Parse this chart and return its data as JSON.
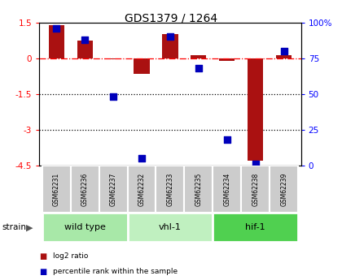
{
  "title": "GDS1379 / 1264",
  "samples": [
    "GSM62231",
    "GSM62236",
    "GSM62237",
    "GSM62232",
    "GSM62233",
    "GSM62235",
    "GSM62234",
    "GSM62238",
    "GSM62239"
  ],
  "log2_ratio": [
    1.4,
    0.75,
    -0.05,
    -0.65,
    1.0,
    0.12,
    -0.1,
    -4.3,
    0.12
  ],
  "percentile_rank": [
    96,
    88,
    48,
    5,
    90,
    68,
    18,
    1,
    80
  ],
  "groups": [
    {
      "label": "wild type",
      "indices": [
        0,
        1,
        2
      ],
      "color": "#a8e8a8"
    },
    {
      "label": "vhl-1",
      "indices": [
        3,
        4,
        5
      ],
      "color": "#c0f0c0"
    },
    {
      "label": "hif-1",
      "indices": [
        6,
        7,
        8
      ],
      "color": "#50d050"
    }
  ],
  "ylim_left": [
    -4.5,
    1.5
  ],
  "ylim_right": [
    0,
    100
  ],
  "yticks_left": [
    1.5,
    0.0,
    -1.5,
    -3.0,
    -4.5
  ],
  "yticks_right": [
    100,
    75,
    50,
    25,
    0
  ],
  "hline_y": 0,
  "dotted_hlines": [
    -1.5,
    -3.0
  ],
  "bar_color": "#aa1111",
  "dot_color": "#0000bb",
  "bar_width": 0.55,
  "dot_size": 35,
  "gray_color": "#cccccc",
  "legend_items": [
    {
      "label": "log2 ratio",
      "color": "#aa1111"
    },
    {
      "label": "percentile rank within the sample",
      "color": "#0000bb"
    }
  ]
}
